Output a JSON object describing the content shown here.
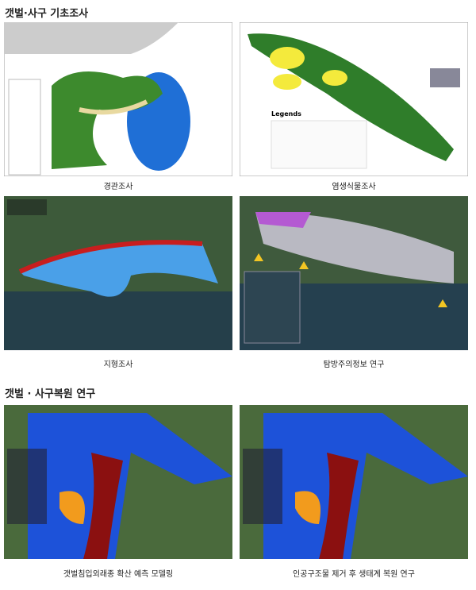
{
  "sections": [
    {
      "title": "갯벌·사구 기초조사",
      "figures": [
        {
          "caption": "경관조사"
        },
        {
          "caption": "염생식물조사",
          "legend_title": "Legends"
        },
        {
          "caption": "지형조사"
        },
        {
          "caption": "탐방주의정보 연구"
        }
      ]
    },
    {
      "title": "갯벌 · 사구복원 연구",
      "figures": [
        {
          "caption": "갯벌침입외래종 확산 예측 모델링"
        },
        {
          "caption": "인공구조물 제거 후 생태계 복원 연구"
        }
      ]
    }
  ]
}
